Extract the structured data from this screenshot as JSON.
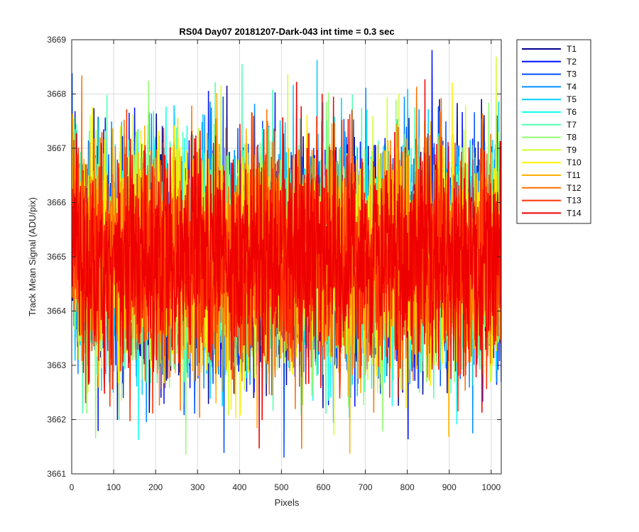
{
  "chart_data": {
    "type": "line",
    "title": "RS04 Day07 20181207-Dark-043 int time = 0.3 sec",
    "xlabel": "Pixels",
    "ylabel": "Track Mean Signal (ADU/pix)",
    "xlim": [
      0,
      1024
    ],
    "ylim": [
      3661,
      3669
    ],
    "xticks": [
      0,
      100,
      200,
      300,
      400,
      500,
      600,
      700,
      800,
      900,
      1000
    ],
    "yticks": [
      3661,
      3662,
      3663,
      3664,
      3665,
      3666,
      3667,
      3668,
      3669
    ],
    "grid": true,
    "legend_position": "outside-top-right",
    "noise_model": {
      "mean": 3665.0,
      "sigma": 1.0,
      "min": 3661.3,
      "max": 3668.9,
      "samples_per_series": 1024
    },
    "series": [
      {
        "name": "T1",
        "color": "#00008f"
      },
      {
        "name": "T2",
        "color": "#0010ff"
      },
      {
        "name": "T3",
        "color": "#0050ff"
      },
      {
        "name": "T4",
        "color": "#0090ff"
      },
      {
        "name": "T5",
        "color": "#00d0ff"
      },
      {
        "name": "T6",
        "color": "#10ffef"
      },
      {
        "name": "T7",
        "color": "#50ffaf"
      },
      {
        "name": "T8",
        "color": "#90ff6f"
      },
      {
        "name": "T9",
        "color": "#cfff30"
      },
      {
        "name": "T10",
        "color": "#ffef00"
      },
      {
        "name": "T11",
        "color": "#ffaf00"
      },
      {
        "name": "T12",
        "color": "#ff7000"
      },
      {
        "name": "T13",
        "color": "#ff3000"
      },
      {
        "name": "T14",
        "color": "#ef0000"
      }
    ]
  }
}
